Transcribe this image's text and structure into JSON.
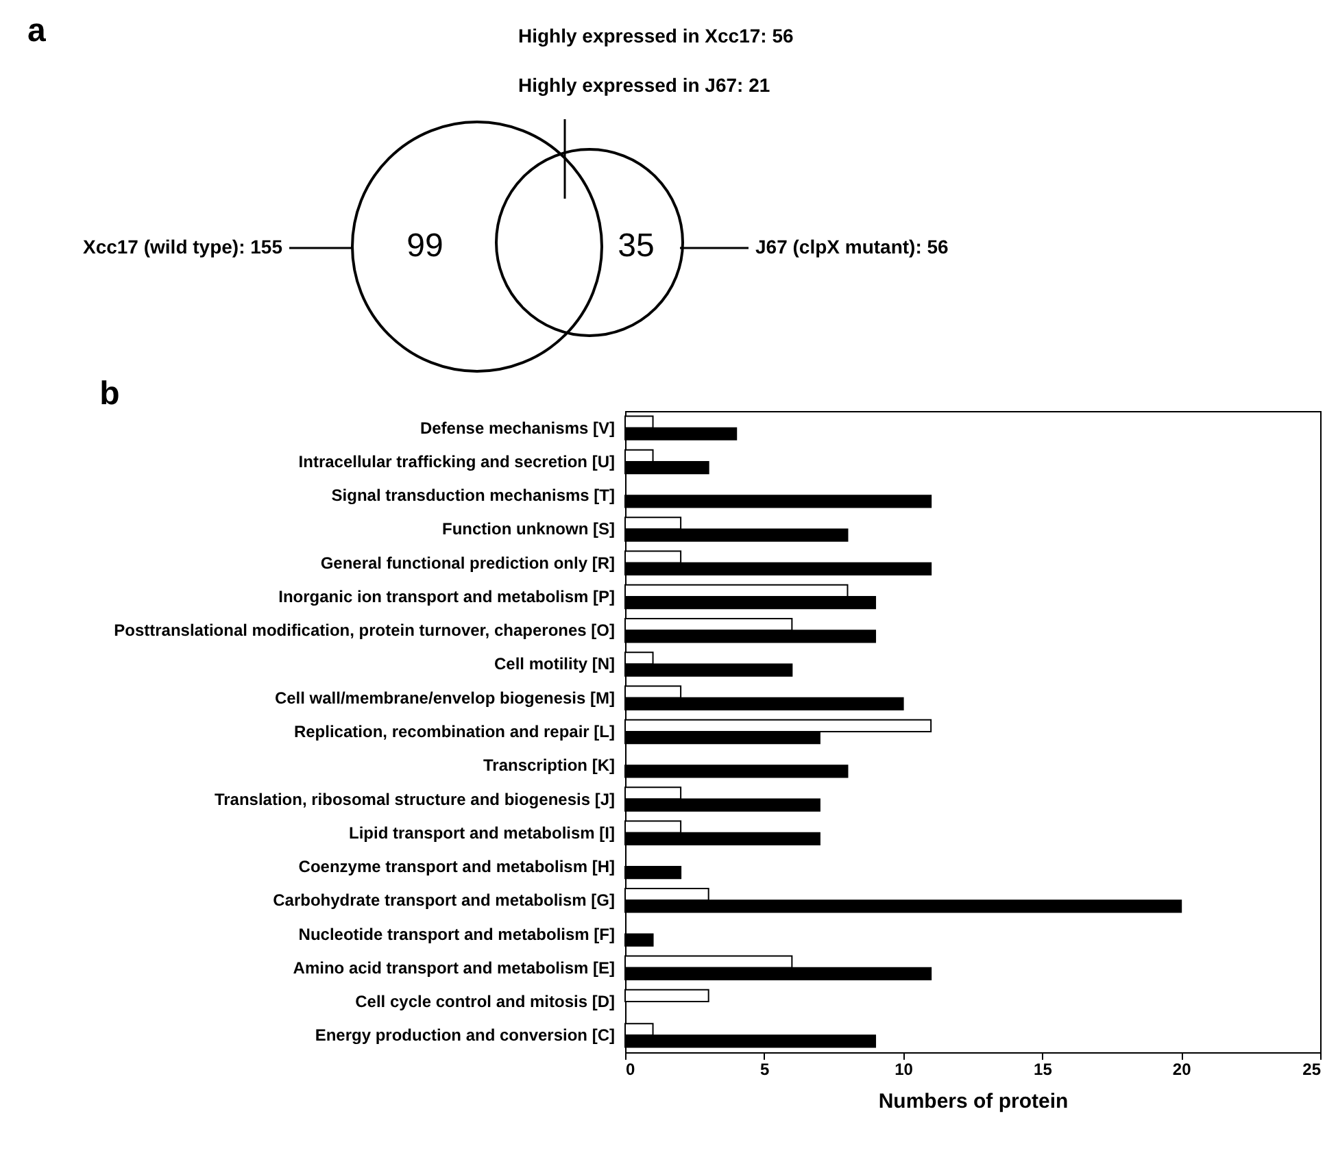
{
  "chart_data": [
    {
      "type": "other",
      "title": "a",
      "annotations": [
        "Highly expressed in Xcc17: 56",
        "Highly expressed in J67: 21",
        "Xcc17 (wild type): 155",
        "99",
        "35",
        "J67 (clpX mutant): 56"
      ]
    },
    {
      "type": "bar",
      "title": "b",
      "orientation": "horizontal",
      "xlabel": "Numbers of protein",
      "categories": [
        "Defense mechanisms [V]",
        "Intracellular trafficking and secretion [U]",
        "Signal transduction mechanisms [T]",
        "Function unknown [S]",
        "General functional prediction only [R]",
        "Inorganic ion transport and metabolism [P]",
        "Posttranslational modification, protein turnover, chaperones [O]",
        "Cell motility [N]",
        "Cell wall/membrane/envelop biogenesis [M]",
        "Replication, recombination and repair [L]",
        "Transcription [K]",
        "Translation, ribosomal structure and biogenesis [J]",
        "Lipid transport and metabolism [I]",
        "Coenzyme transport and metabolism [H]",
        "Carbohydrate transport and metabolism [G]",
        "Nucleotide transport and metabolism [F]",
        "Amino acid transport and metabolism [E]",
        "Cell cycle control and mitosis [D]",
        "Energy production and conversion [C]"
      ],
      "series": [
        {
          "color": "#ffffff",
          "values": [
            1,
            1,
            0,
            2,
            2,
            8,
            6,
            1,
            2,
            11,
            0,
            2,
            2,
            0,
            3,
            0,
            6,
            3,
            1
          ]
        },
        {
          "color": "#000000",
          "values": [
            4,
            3,
            11,
            8,
            11,
            9,
            9,
            6,
            10,
            7,
            8,
            7,
            7,
            2,
            20,
            1,
            11,
            0,
            9
          ]
        }
      ],
      "xlim": [
        0,
        25
      ],
      "xticks": [
        0,
        5,
        10,
        15,
        20,
        25
      ],
      "grid": false,
      "legend": false
    }
  ]
}
